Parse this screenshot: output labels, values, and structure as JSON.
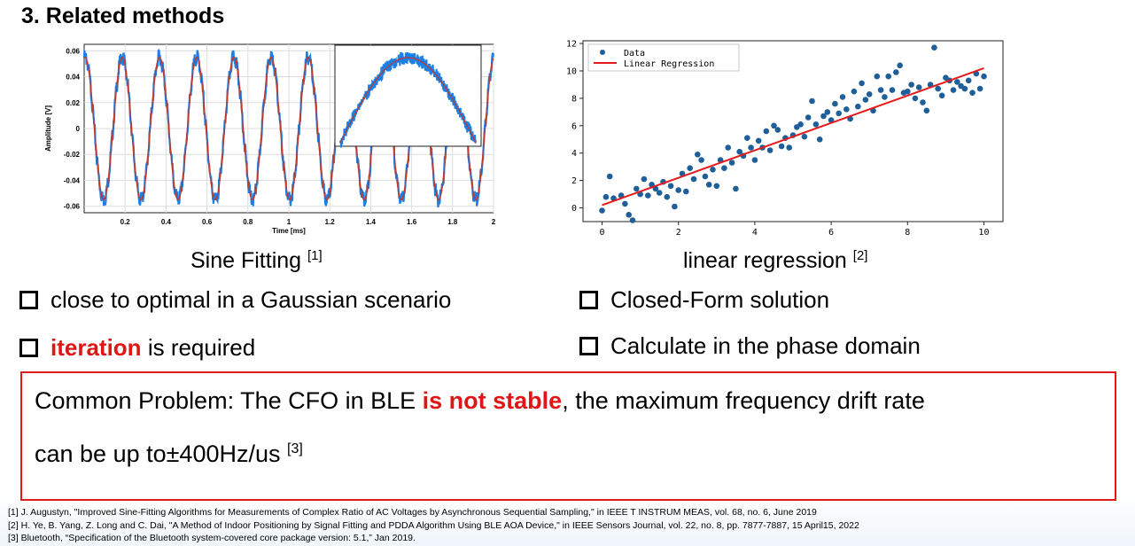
{
  "slide": {
    "title": "3. Related methods",
    "left_caption": "Sine Fitting",
    "left_caption_ref": "[1]",
    "right_caption": "linear regression",
    "right_caption_ref": "[2]",
    "bullets_left": [
      "close to optimal in a Gaussian scenario",
      "is required"
    ],
    "bullet_left_highlight": "iteration",
    "bullets_right": [
      "Closed-Form solution",
      "Calculate in the phase domain"
    ],
    "problem": {
      "line1_prefix": "Common Problem: The CFO in BLE ",
      "line1_highlight": "is not stable",
      "line1_suffix": ", the maximum frequency drift rate",
      "line2": "can be up to±400Hz/us ",
      "line2_ref": "[3]"
    },
    "references": [
      "[1] J. Augustyn, \"Improved Sine-Fitting Algorithms for Measurements of Complex Ratio of AC Voltages by Asynchronous Sequential Sampling,\" in IEEE T INSTRUM MEAS, vol. 68, no. 6, June 2019",
      "[2] H. Ye, B. Yang, Z. Long and C. Dai, \"A Method of Indoor Positioning by Signal Fitting and PDDA Algorithm Using BLE AOA Device,\" in IEEE Sensors Journal, vol. 22, no. 8, pp. 7877-7887, 15 April15, 2022",
      "[3] Bluetooth, “Specification of the Bluetooth system-covered core package version: 5.1,” Jan 2019."
    ],
    "colors": {
      "highlight": "#e01616",
      "box_border": "#e01a1a"
    }
  },
  "chart_data": [
    {
      "type": "line",
      "xlabel": "Time [ms]",
      "ylabel": "Amplitude [V]",
      "xlim": [
        0,
        2
      ],
      "ylim": [
        -0.065,
        0.065
      ],
      "x_ticks": [
        "0.2",
        "0.4",
        "0.6",
        "0.8",
        "1",
        "1.2",
        "1.4",
        "1.6",
        "1.8",
        "2"
      ],
      "y_ticks": [
        "0.06",
        "0.04",
        "0.02",
        "0",
        "-0.02",
        "-0.04",
        "-0.06"
      ],
      "amplitude": 0.055,
      "periods": 11,
      "series": [
        {
          "color": "#1a7fe6"
        },
        {
          "color": "#c0392b"
        }
      ],
      "inset": "zoom on one half-period of the sine wave",
      "grid": true
    },
    {
      "type": "scatter",
      "xlim": [
        -0.5,
        10.5
      ],
      "ylim": [
        -1,
        12.2
      ],
      "x_ticks": [
        "0",
        "2",
        "4",
        "6",
        "8",
        "10"
      ],
      "y_ticks": [
        "0",
        "2",
        "4",
        "6",
        "8",
        "10",
        "12"
      ],
      "legend": [
        "Data",
        "Linear Regression"
      ],
      "legend_position": "top-left",
      "points": [
        [
          0.0,
          -0.2
        ],
        [
          0.1,
          0.8
        ],
        [
          0.2,
          2.3
        ],
        [
          0.3,
          0.7
        ],
        [
          0.5,
          0.9
        ],
        [
          0.6,
          0.3
        ],
        [
          0.7,
          -0.5
        ],
        [
          0.8,
          -0.9
        ],
        [
          0.9,
          1.4
        ],
        [
          1.0,
          1.0
        ],
        [
          1.1,
          2.1
        ],
        [
          1.2,
          0.9
        ],
        [
          1.3,
          1.7
        ],
        [
          1.4,
          1.4
        ],
        [
          1.5,
          1.1
        ],
        [
          1.6,
          1.9
        ],
        [
          1.7,
          0.8
        ],
        [
          1.8,
          1.6
        ],
        [
          1.9,
          0.1
        ],
        [
          2.0,
          1.3
        ],
        [
          2.1,
          2.5
        ],
        [
          2.2,
          1.2
        ],
        [
          2.3,
          2.9
        ],
        [
          2.4,
          2.1
        ],
        [
          2.5,
          3.9
        ],
        [
          2.6,
          3.5
        ],
        [
          2.7,
          2.3
        ],
        [
          2.8,
          1.7
        ],
        [
          2.9,
          2.8
        ],
        [
          3.0,
          1.6
        ],
        [
          3.1,
          3.5
        ],
        [
          3.2,
          2.9
        ],
        [
          3.3,
          4.4
        ],
        [
          3.4,
          3.3
        ],
        [
          3.5,
          1.4
        ],
        [
          3.6,
          4.1
        ],
        [
          3.7,
          3.8
        ],
        [
          3.8,
          5.1
        ],
        [
          3.9,
          4.4
        ],
        [
          4.0,
          3.5
        ],
        [
          4.1,
          4.9
        ],
        [
          4.2,
          4.4
        ],
        [
          4.3,
          5.6
        ],
        [
          4.4,
          4.2
        ],
        [
          4.5,
          6.0
        ],
        [
          4.6,
          5.7
        ],
        [
          4.7,
          4.5
        ],
        [
          4.8,
          5.1
        ],
        [
          4.9,
          4.4
        ],
        [
          5.0,
          5.3
        ],
        [
          5.1,
          5.9
        ],
        [
          5.2,
          6.1
        ],
        [
          5.3,
          5.2
        ],
        [
          5.4,
          6.6
        ],
        [
          5.5,
          7.8
        ],
        [
          5.6,
          6.1
        ],
        [
          5.7,
          5.0
        ],
        [
          5.8,
          6.7
        ],
        [
          5.9,
          7.0
        ],
        [
          6.0,
          6.4
        ],
        [
          6.1,
          7.6
        ],
        [
          6.2,
          6.9
        ],
        [
          6.3,
          8.1
        ],
        [
          6.4,
          7.2
        ],
        [
          6.5,
          6.5
        ],
        [
          6.6,
          8.5
        ],
        [
          6.7,
          7.4
        ],
        [
          6.8,
          9.1
        ],
        [
          6.9,
          7.9
        ],
        [
          7.0,
          8.3
        ],
        [
          7.1,
          7.1
        ],
        [
          7.2,
          9.6
        ],
        [
          7.3,
          8.6
        ],
        [
          7.4,
          8.1
        ],
        [
          7.5,
          9.6
        ],
        [
          7.6,
          8.6
        ],
        [
          7.7,
          9.9
        ],
        [
          7.8,
          10.4
        ],
        [
          7.9,
          8.4
        ],
        [
          8.0,
          8.5
        ],
        [
          8.1,
          9.0
        ],
        [
          8.2,
          8.0
        ],
        [
          8.3,
          8.8
        ],
        [
          8.4,
          7.7
        ],
        [
          8.5,
          7.1
        ],
        [
          8.6,
          9.0
        ],
        [
          8.7,
          11.7
        ],
        [
          8.8,
          8.7
        ],
        [
          8.9,
          8.2
        ],
        [
          9.0,
          9.5
        ],
        [
          9.1,
          9.3
        ],
        [
          9.2,
          8.6
        ],
        [
          9.3,
          9.2
        ],
        [
          9.4,
          8.9
        ],
        [
          9.5,
          8.7
        ],
        [
          9.6,
          9.3
        ],
        [
          9.7,
          8.4
        ],
        [
          9.8,
          9.8
        ],
        [
          9.9,
          8.7
        ],
        [
          10.0,
          9.6
        ]
      ],
      "regression": {
        "slope": 1.0,
        "intercept": 0.2
      }
    }
  ]
}
